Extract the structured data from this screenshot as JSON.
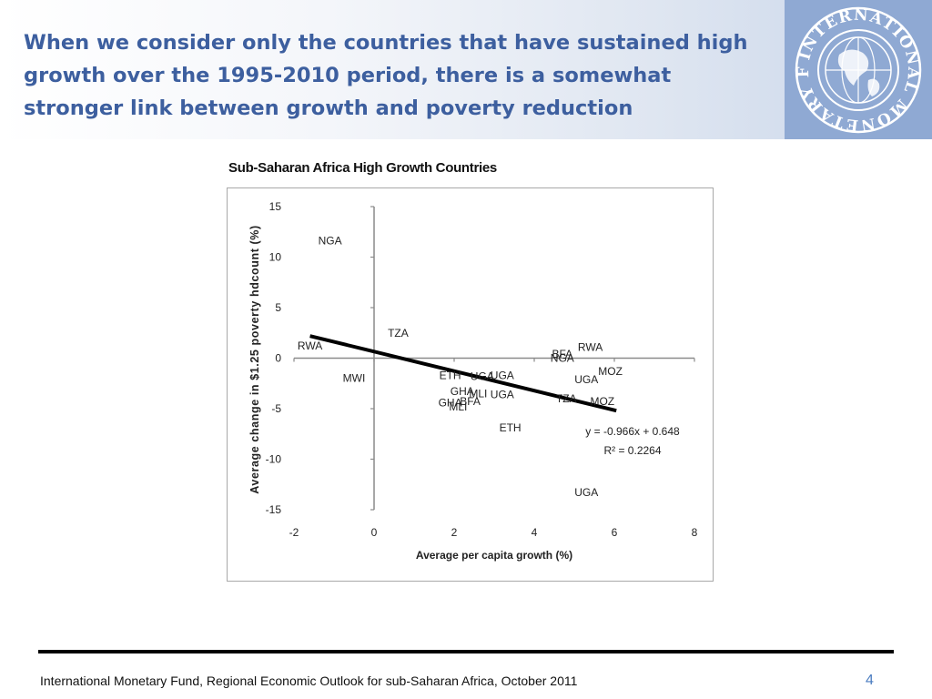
{
  "slide": {
    "title": "When we consider only the countries that have sustained high growth over the 1995-2010 period,  there is a somewhat stronger link between growth and poverty reduction",
    "logo_text": "INTERNATIONAL MONETARY FUND",
    "footer_source": "International Monetary Fund, Regional Economic Outlook for sub-Saharan Africa, October 2011",
    "page_number": "4"
  },
  "chart_data": {
    "type": "scatter",
    "title": "Sub-Saharan Africa High Growth Countries",
    "xlabel": "Average per capita growth (%)",
    "ylabel": "Average change  in $1.25 poverty hdcount  (%)",
    "xlim": [
      -2,
      8
    ],
    "ylim": [
      -15,
      15
    ],
    "x_ticks": [
      -2,
      0,
      2,
      4,
      6,
      8
    ],
    "y_ticks": [
      15,
      10,
      5,
      0,
      -5,
      -10,
      -15
    ],
    "grid": false,
    "legend": "none",
    "points": [
      {
        "label": "NGA",
        "x": -1.1,
        "y": 11.6
      },
      {
        "label": "TZA",
        "x": 0.6,
        "y": 2.5
      },
      {
        "label": "RWA",
        "x": -1.6,
        "y": 1.2
      },
      {
        "label": "MWI",
        "x": -0.5,
        "y": -2.0
      },
      {
        "label": "ETH",
        "x": 1.9,
        "y": -1.7
      },
      {
        "label": "UGA",
        "x": 2.7,
        "y": -1.8
      },
      {
        "label": "UGA",
        "x": 3.2,
        "y": -1.7
      },
      {
        "label": "GHA",
        "x": 2.2,
        "y": -3.3
      },
      {
        "label": "MLI",
        "x": 2.6,
        "y": -3.5
      },
      {
        "label": "UGA",
        "x": 3.2,
        "y": -3.6
      },
      {
        "label": "GHA",
        "x": 1.9,
        "y": -4.4
      },
      {
        "label": "BFA",
        "x": 2.4,
        "y": -4.3
      },
      {
        "label": "MLI",
        "x": 2.1,
        "y": -4.8
      },
      {
        "label": "ETH",
        "x": 3.4,
        "y": -6.9
      },
      {
        "label": "BFA",
        "x": 4.7,
        "y": 0.4
      },
      {
        "label": "NGA",
        "x": 4.7,
        "y": 0.0
      },
      {
        "label": "RWA",
        "x": 5.4,
        "y": 1.1
      },
      {
        "label": "MOZ",
        "x": 5.9,
        "y": -1.3
      },
      {
        "label": "UGA",
        "x": 5.3,
        "y": -2.1
      },
      {
        "label": "TZA",
        "x": 4.8,
        "y": -4.0
      },
      {
        "label": "MOZ",
        "x": 5.7,
        "y": -4.3
      },
      {
        "label": "UGA",
        "x": 5.3,
        "y": -13.3
      }
    ],
    "trendline": {
      "slope": -0.966,
      "intercept": 0.648,
      "x_range": [
        -1.6,
        6.05
      ]
    },
    "annotations": [
      "y = -0.966x + 0.648",
      "R² = 0.2264"
    ]
  }
}
